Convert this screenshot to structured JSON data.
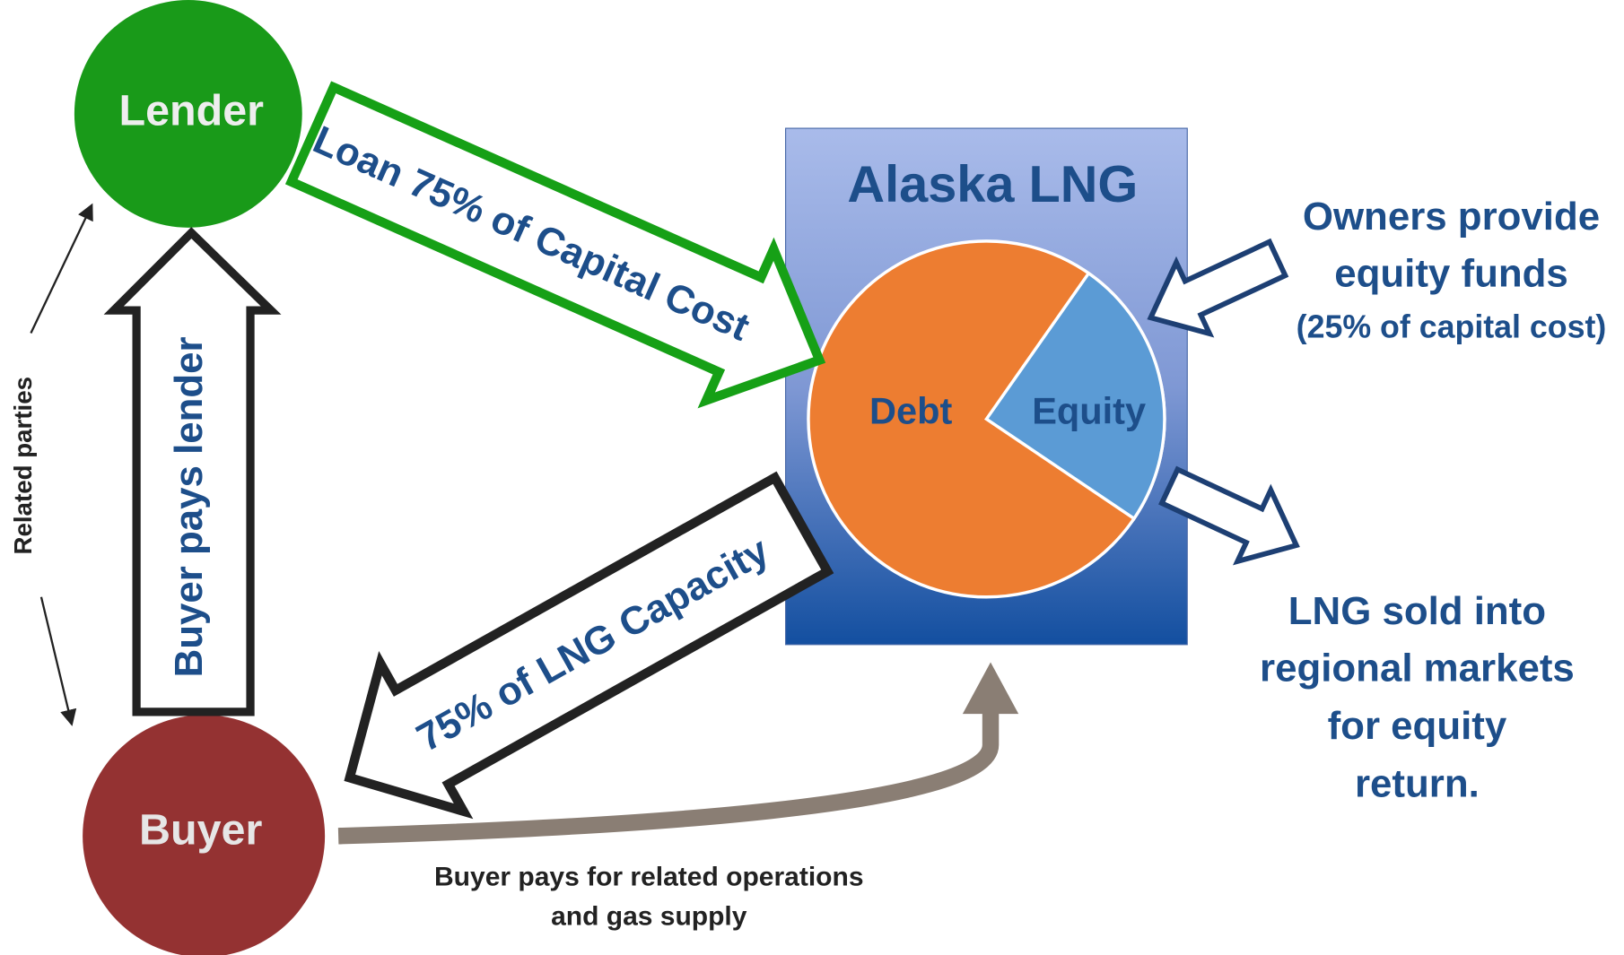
{
  "nodes": {
    "lender": "Lender",
    "buyer": "Buyer",
    "project": "Alaska LNG",
    "debt": "Debt",
    "equity": "Equity"
  },
  "arrows": {
    "loan": "Loan 75% of Capital Cost",
    "buyer_pays_lender": "Buyer pays lender",
    "capacity": "75% of LNG Capacity",
    "related": "Related parties"
  },
  "notes": {
    "owners": [
      "Owners provide",
      "equity funds",
      "(25% of capital cost)"
    ],
    "lng_sold": [
      "LNG sold into",
      "regional markets",
      "for equity",
      "return."
    ],
    "buyer_pays": [
      "Buyer pays for related operations",
      "and gas supply"
    ]
  }
}
